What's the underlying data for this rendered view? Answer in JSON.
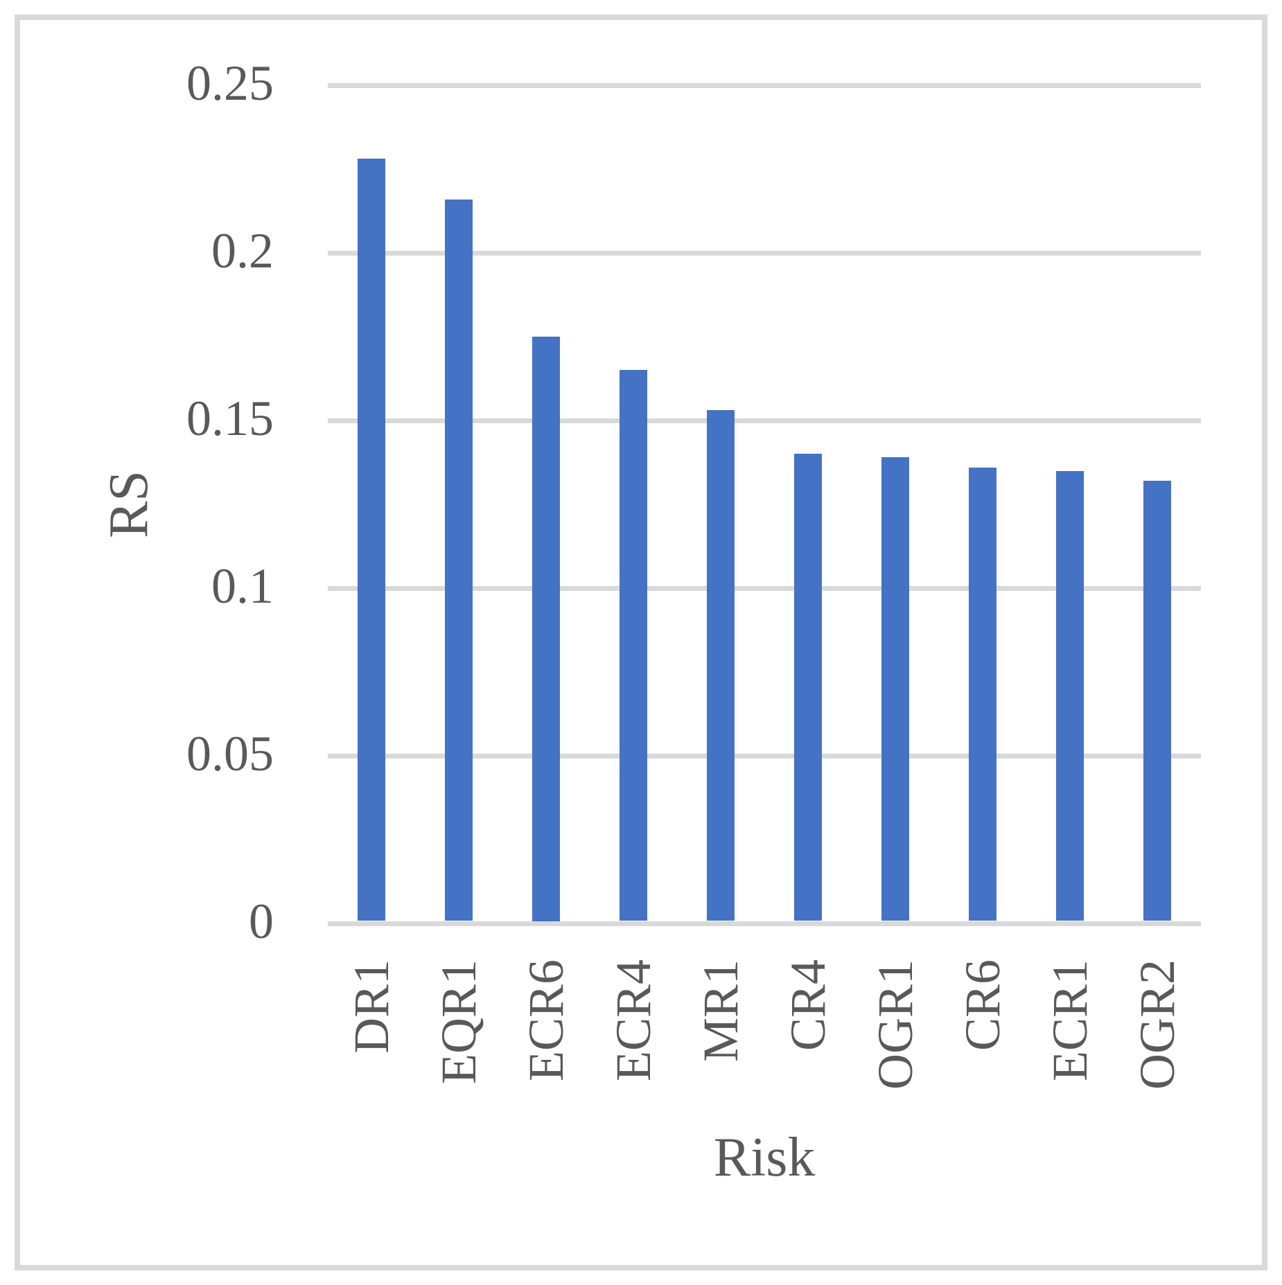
{
  "chart_data": {
    "type": "bar",
    "categories": [
      "DR1",
      "EQR1",
      "ECR6",
      "ECR4",
      "MR1",
      "CR4",
      "OGR1",
      "CR6",
      "ECR1",
      "OGR2"
    ],
    "values": [
      0.228,
      0.216,
      0.175,
      0.165,
      0.153,
      0.14,
      0.139,
      0.136,
      0.135,
      0.132
    ],
    "title": "",
    "xlabel": "Risk",
    "ylabel": "RS",
    "ylim": [
      0,
      0.25
    ],
    "yticks": [
      0,
      0.05,
      0.1,
      0.15,
      0.2,
      0.25
    ],
    "ytick_labels": [
      "0",
      "0.05",
      "0.1",
      "0.15",
      "0.2",
      "0.25"
    ],
    "grid": true,
    "legend": false,
    "colors": {
      "bar": "#4472c4",
      "gridline": "#d9d9d9",
      "axis_line": "#d9d9d9",
      "text": "#595959",
      "frame_border": "#d9d9d9",
      "background": "#ffffff"
    }
  }
}
